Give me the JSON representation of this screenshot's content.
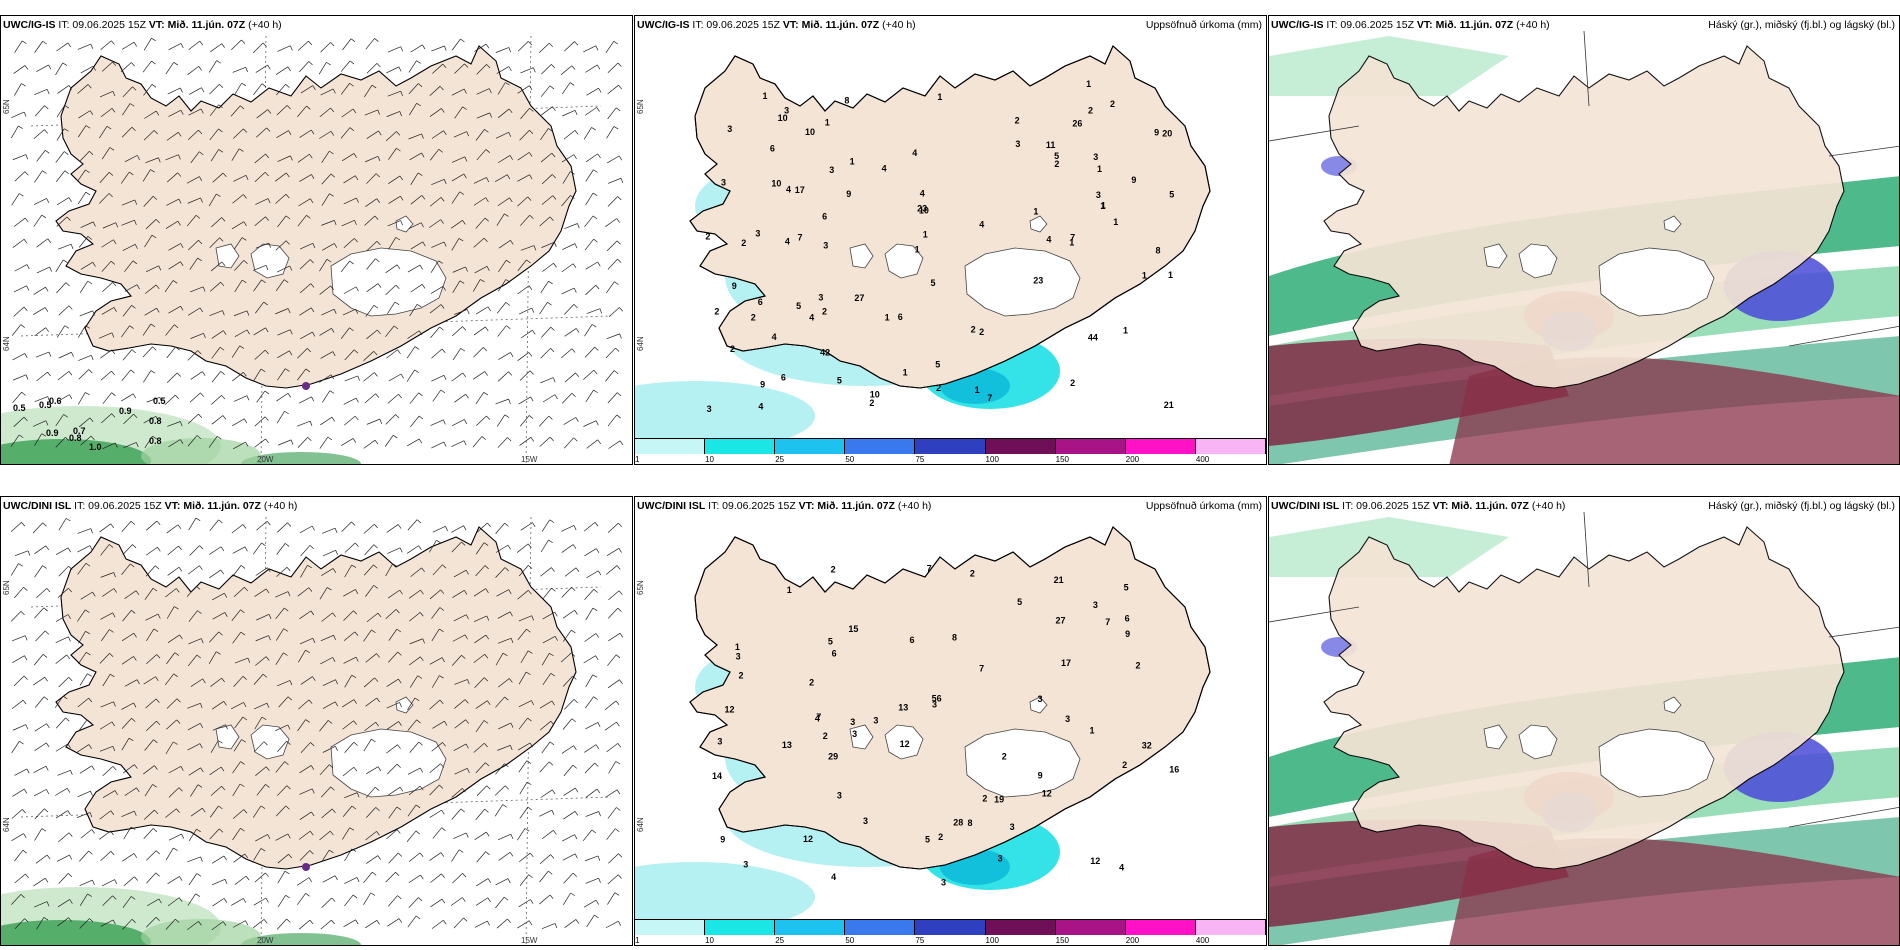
{
  "panels": [
    {
      "id": "wind-ig",
      "model_bold": "UWC/IG-IS",
      "issue": " IT: 09.06.2025 15Z ",
      "vt_bold": "VT: Mið. 11.jún. 07Z",
      "lead": " (+40 h)",
      "right_label": "",
      "lat_top": "65N",
      "lat_bot": "64N",
      "lon_a": "20W",
      "lon_b": "15W",
      "values": [
        "0.5",
        "0.5",
        "0.6",
        "0.8",
        "0.9",
        "0.8",
        "0.7",
        "0.9",
        "0.5",
        "0.8",
        "1.0"
      ]
    },
    {
      "id": "precip-ig",
      "model_bold": "UWC/IG-IS",
      "issue": " IT: 09.06.2025 15Z ",
      "vt_bold": "VT: Mið. 11.jún. 07Z",
      "lead": " (+40 h)",
      "right_label": "Uppsöfnuð úrkoma (mm)",
      "lat_top": "65N",
      "lat_bot": "64N",
      "values": [
        "4",
        "2",
        "7",
        "5",
        "5",
        "4",
        "1",
        "5",
        "6",
        "8",
        "4",
        "10",
        "10",
        "9",
        "9",
        "9",
        "2",
        "4",
        "3",
        "4",
        "2",
        "6",
        "3",
        "1",
        "1",
        "1",
        "1",
        "4",
        "2",
        "1",
        "1",
        "2",
        "2",
        "11",
        "6",
        "9",
        "10",
        "9",
        "2",
        "1",
        "2",
        "1",
        "1",
        "3",
        "2",
        "2",
        "3",
        "1",
        "2",
        "5",
        "2",
        "6",
        "1",
        "1",
        "1",
        "7",
        "10",
        "10",
        "2",
        "1",
        "1",
        "5",
        "4",
        "7",
        "4",
        "2",
        "3",
        "3",
        "2",
        "3",
        "4",
        "5",
        "6",
        "3",
        "1",
        "4",
        "1",
        "20",
        "17",
        "21",
        "23",
        "44",
        "26",
        "23",
        "27",
        "42",
        "3",
        "3",
        "1",
        "3",
        "8"
      ]
    },
    {
      "id": "cloud-ig",
      "model_bold": "UWC/IG-IS",
      "issue": " IT: 09.06.2025 15Z ",
      "vt_bold": "VT: Mið. 11.jún. 07Z",
      "lead": " (+40 h)",
      "right_label": "Háský (gr.), miðský (fj.bl.) og lágský (bl.)"
    },
    {
      "id": "wind-dini",
      "model_bold": "UWC/DINI ISL",
      "issue": " IT: 09.06.2025 15Z ",
      "vt_bold": "VT: Mið. 11.jún. 07Z",
      "lead": " (+40 h)",
      "right_label": "",
      "lat_top": "65N",
      "lat_bot": "64N",
      "lon_a": "20W",
      "lon_b": "15W",
      "values": []
    },
    {
      "id": "precip-dini",
      "model_bold": "UWC/DINI ISL",
      "issue": " IT: 09.06.2025 15Z ",
      "vt_bold": "VT: Mið. 11.jún. 07Z",
      "lead": " (+40 h)",
      "right_label": "Uppsöfnuð úrkoma (mm)",
      "lat_top": "65N",
      "lat_bot": "64N",
      "values": [
        "2",
        "3",
        "3",
        "2",
        "3",
        "2",
        "2",
        "5",
        "12",
        "19",
        "12",
        "7",
        "3",
        "5",
        "8",
        "3",
        "3",
        "2",
        "7",
        "29",
        "21",
        "2",
        "3",
        "3",
        "2",
        "8",
        "9",
        "5",
        "3",
        "13",
        "13",
        "1",
        "1",
        "4",
        "2",
        "3",
        "6",
        "3",
        "3",
        "7",
        "7",
        "9",
        "3",
        "6",
        "14",
        "16",
        "15",
        "17",
        "12",
        "12",
        "4",
        "3",
        "6",
        "4",
        "3",
        "12",
        "32",
        "56",
        "28",
        "27",
        "2",
        "9",
        "5",
        "1",
        "2"
      ]
    },
    {
      "id": "cloud-dini",
      "model_bold": "UWC/DINI ISL",
      "issue": " IT: 09.06.2025 15Z ",
      "vt_bold": "VT: Mið. 11.jún. 07Z",
      "lead": " (+40 h)",
      "right_label": "Háský (gr.), miðský (fj.bl.) og lágský (bl.)"
    }
  ],
  "precip_legend": {
    "labels": [
      "1",
      "10",
      "25",
      "50",
      "75",
      "100",
      "150",
      "200",
      "400"
    ],
    "colors": [
      "#c6f6f6",
      "#1ae6e6",
      "#1ec2ef",
      "#3a78ee",
      "#2e3fc0",
      "#6e0f58",
      "#a81488",
      "#ff12c6",
      "#f8b4f4"
    ]
  },
  "colors": {
    "land": "#f4e4d5",
    "wind_green": "#2e9a4a",
    "precip_light": "#a8eef0",
    "precip_mid": "#1ee0e6",
    "cloud_high": "#2fae78",
    "cloud_mid": "#7f2a44",
    "cloud_low": "#4a4ad8"
  }
}
